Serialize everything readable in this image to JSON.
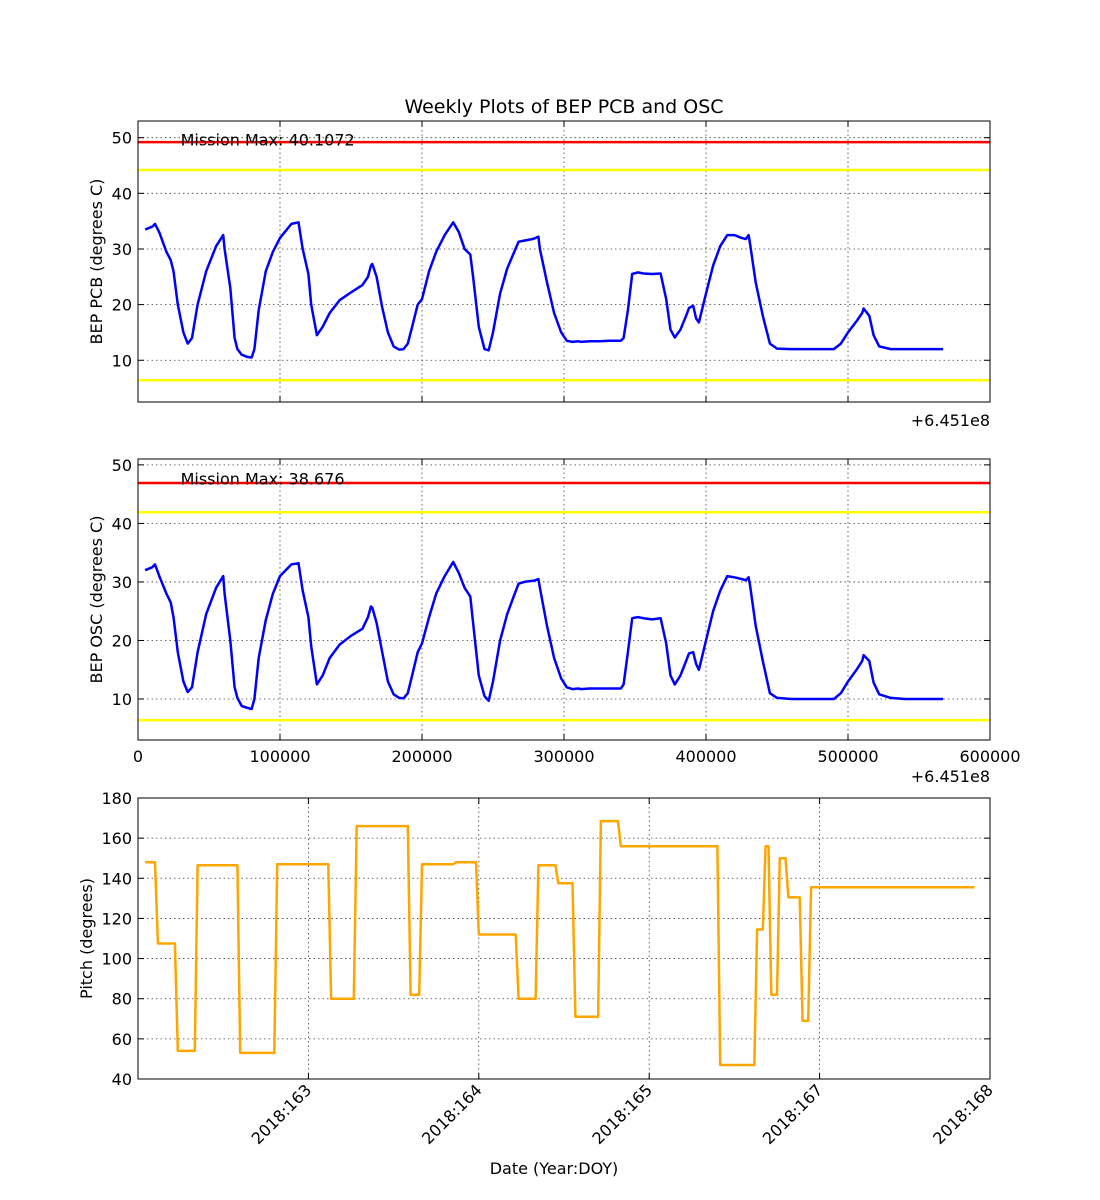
{
  "figure": {
    "title": "Weekly Plots of BEP PCB and OSC"
  },
  "chart_data": [
    {
      "type": "line",
      "id": "pcb",
      "title": "Weekly Plots of BEP PCB and OSC",
      "ylabel": "BEP PCB (degrees C)",
      "xlabel": "",
      "offset_label": "+6.451e8",
      "xlim": [
        0,
        600000
      ],
      "ylim": [
        2.5,
        53
      ],
      "yticks": [
        10,
        20,
        30,
        40,
        50
      ],
      "xticks": [
        0,
        100000,
        200000,
        300000,
        400000,
        500000,
        600000
      ],
      "show_x_tick_labels": false,
      "grid": true,
      "annotation": {
        "text": "Mission Max: 40.1072",
        "x": 30000,
        "y": 49.5
      },
      "limit_lines": [
        {
          "y": 49.2,
          "color": "#ff0000"
        },
        {
          "y": 44.2,
          "color": "#ffff00"
        },
        {
          "y": 6.4,
          "color": "#ffff00"
        }
      ],
      "series": [
        {
          "color": "#0000ff",
          "x": [
            5000,
            10000,
            12000,
            15000,
            20000,
            23000,
            25000,
            28000,
            32000,
            35000,
            38000,
            42000,
            48000,
            55000,
            60000,
            61000,
            65000,
            68000,
            70000,
            73000,
            77000,
            80000,
            82000,
            85000,
            90000,
            95000,
            100000,
            108000,
            113000,
            116000,
            120000,
            122000,
            126000,
            130000,
            135000,
            142000,
            150000,
            158000,
            162000,
            164000,
            165000,
            168000,
            172000,
            176000,
            180000,
            184000,
            187000,
            190000,
            193000,
            197000,
            200000,
            205000,
            210000,
            216000,
            222000,
            226000,
            230000,
            234000,
            236000,
            240000,
            244000,
            247000,
            250000,
            255000,
            260000,
            265000,
            268000,
            272000,
            278000,
            280000,
            282000,
            283000,
            288000,
            293000,
            298000,
            302000,
            306000,
            310000,
            312000,
            318000,
            325000,
            332000,
            340000,
            342000,
            345000,
            348000,
            352000,
            356000,
            362000,
            368000,
            372000,
            375000,
            378000,
            382000,
            386000,
            388000,
            391000,
            393000,
            395000,
            400000,
            405000,
            410000,
            415000,
            420000,
            425000,
            428000,
            430000,
            431000,
            435000,
            440000,
            445000,
            450000,
            460000,
            470000,
            480000,
            486000,
            490000,
            495000,
            500000,
            506000,
            510000,
            511000,
            515000,
            518000,
            522000,
            530000,
            540000,
            550000,
            560000,
            567000
          ],
          "y": [
            33.5,
            34,
            34.5,
            33,
            29.5,
            28,
            26,
            20,
            15,
            13,
            14,
            20,
            26,
            30.5,
            32.5,
            30,
            23,
            14,
            12,
            11,
            10.6,
            10.5,
            12,
            19,
            26,
            29.5,
            32,
            34.5,
            34.8,
            30,
            25.5,
            20,
            14.5,
            16,
            18.5,
            20.8,
            22.2,
            23.5,
            25,
            27,
            27.3,
            25,
            19.5,
            15,
            12.5,
            11.9,
            12,
            13,
            16,
            20,
            21,
            26,
            29.5,
            32.5,
            34.8,
            33,
            30,
            29,
            25,
            16,
            12,
            11.8,
            15,
            22,
            26.5,
            29.5,
            31.3,
            31.5,
            31.8,
            32,
            32.2,
            30,
            24,
            18.5,
            15,
            13.5,
            13.3,
            13.4,
            13.3,
            13.4,
            13.4,
            13.5,
            13.5,
            14,
            19,
            25.5,
            25.8,
            25.6,
            25.5,
            25.6,
            21,
            15.5,
            14.1,
            15.5,
            18,
            19.4,
            19.8,
            17.5,
            16.8,
            22,
            27,
            30.5,
            32.5,
            32.5,
            32,
            31.8,
            32.5,
            31,
            24,
            18,
            13,
            12.1,
            12,
            12,
            12,
            12,
            12,
            13,
            15,
            17,
            18.5,
            19.3,
            18,
            14.5,
            12.5,
            12,
            12,
            12,
            12,
            12
          ]
        }
      ]
    },
    {
      "type": "line",
      "id": "osc",
      "ylabel": "BEP OSC (degrees C)",
      "xlabel": "",
      "offset_label": "+6.451e8",
      "xlim": [
        0,
        600000
      ],
      "ylim": [
        3,
        51
      ],
      "yticks": [
        10,
        20,
        30,
        40,
        50
      ],
      "xticks": [
        0,
        100000,
        200000,
        300000,
        400000,
        500000,
        600000
      ],
      "x_tick_labels": [
        "0",
        "100000",
        "200000",
        "300000",
        "400000",
        "500000",
        "600000"
      ],
      "show_x_tick_labels": true,
      "grid": true,
      "annotation": {
        "text": "Mission Max: 38.676",
        "x": 30000,
        "y": 47.5
      },
      "limit_lines": [
        {
          "y": 46.9,
          "color": "#ff0000"
        },
        {
          "y": 41.9,
          "color": "#ffff00"
        },
        {
          "y": 6.4,
          "color": "#ffff00"
        }
      ],
      "series": [
        {
          "color": "#0000ff",
          "x": [
            5000,
            10000,
            12000,
            15000,
            20000,
            23000,
            25000,
            28000,
            32000,
            35000,
            38000,
            42000,
            48000,
            55000,
            60000,
            61000,
            65000,
            68000,
            70000,
            73000,
            77000,
            80000,
            82000,
            85000,
            90000,
            95000,
            100000,
            108000,
            113000,
            116000,
            120000,
            122000,
            126000,
            130000,
            135000,
            142000,
            150000,
            158000,
            162000,
            164000,
            165000,
            168000,
            172000,
            176000,
            180000,
            184000,
            187000,
            190000,
            193000,
            197000,
            200000,
            205000,
            210000,
            216000,
            222000,
            226000,
            230000,
            234000,
            236000,
            240000,
            244000,
            247000,
            250000,
            255000,
            260000,
            265000,
            268000,
            272000,
            278000,
            280000,
            282000,
            283000,
            288000,
            293000,
            298000,
            302000,
            306000,
            310000,
            312000,
            318000,
            325000,
            332000,
            340000,
            342000,
            345000,
            348000,
            352000,
            356000,
            362000,
            368000,
            372000,
            375000,
            378000,
            382000,
            386000,
            388000,
            391000,
            393000,
            395000,
            400000,
            405000,
            410000,
            415000,
            420000,
            425000,
            428000,
            430000,
            431000,
            435000,
            440000,
            445000,
            450000,
            460000,
            470000,
            480000,
            486000,
            490000,
            495000,
            500000,
            506000,
            510000,
            511000,
            515000,
            518000,
            522000,
            530000,
            540000,
            550000,
            560000,
            567000
          ],
          "y": [
            32,
            32.5,
            33,
            31,
            28,
            26.5,
            24,
            18,
            13,
            11.2,
            12,
            18,
            24.5,
            29,
            31,
            28,
            20,
            12,
            10.2,
            8.8,
            8.5,
            8.3,
            10,
            17,
            23.5,
            28,
            31,
            33,
            33.2,
            28.5,
            24,
            19,
            12.5,
            14,
            17,
            19.3,
            20.8,
            22,
            24,
            25.8,
            25.6,
            23,
            18,
            13,
            10.8,
            10.2,
            10.1,
            11,
            14,
            18,
            19.5,
            24,
            28,
            31,
            33.4,
            31.5,
            29,
            27.5,
            23,
            14,
            10.5,
            9.7,
            13,
            20,
            24.5,
            27.8,
            29.7,
            30,
            30.2,
            30.3,
            30.5,
            29,
            22.5,
            17,
            13.5,
            12,
            11.7,
            11.8,
            11.7,
            11.8,
            11.8,
            11.8,
            11.8,
            12.5,
            18,
            23.8,
            24,
            23.8,
            23.6,
            23.8,
            19.5,
            14,
            12.5,
            14,
            16.5,
            17.8,
            18,
            16,
            15,
            20,
            25,
            28.5,
            31,
            30.8,
            30.5,
            30.3,
            30.8,
            29.5,
            22.5,
            16.5,
            11,
            10.2,
            10,
            10,
            10,
            10,
            10,
            11,
            13,
            15,
            16.5,
            17.5,
            16.5,
            12.8,
            10.8,
            10.2,
            10,
            10,
            10,
            10
          ]
        }
      ]
    },
    {
      "type": "line",
      "id": "pitch",
      "ylabel": "Pitch (degrees)",
      "xlabel": "Date (Year:DOY)",
      "xlim": [
        0,
        600000
      ],
      "ylim": [
        40,
        180
      ],
      "yticks": [
        40,
        60,
        80,
        100,
        120,
        140,
        160,
        180
      ],
      "xticks": [
        120000,
        240000,
        360000,
        480000,
        600000
      ],
      "x_tick_labels": [
        "2018:163",
        "2018:164",
        "2018:165",
        "2018:167",
        "2018:168"
      ],
      "show_x_tick_labels": true,
      "grid": true,
      "series": [
        {
          "color": "#ffa500",
          "x": [
            5000,
            12000,
            14000,
            26000,
            28000,
            40000,
            42000,
            70000,
            72000,
            96000,
            98000,
            134000,
            136000,
            152000,
            154000,
            190000,
            192000,
            198000,
            200000,
            222000,
            224000,
            238000,
            240000,
            266000,
            268000,
            280000,
            282000,
            294000,
            296000,
            306000,
            308000,
            324000,
            326000,
            338000,
            340000,
            408000,
            410000,
            434000,
            436000,
            440000,
            442000,
            444000,
            446000,
            450000,
            452000,
            456000,
            458000,
            466000,
            468000,
            472000,
            474000,
            500000,
            502000,
            512000,
            514000,
            582000,
            584000,
            589000
          ],
          "y": [
            148,
            148,
            107.5,
            107.5,
            54,
            54,
            146.5,
            146.5,
            53,
            53,
            147,
            147,
            80,
            80,
            166,
            166,
            82,
            82,
            147,
            147,
            148,
            148,
            112,
            112,
            80,
            80,
            146.5,
            146.5,
            137.5,
            137.5,
            71,
            71,
            168.5,
            168.5,
            156,
            156,
            47,
            47,
            114.5,
            114.5,
            156,
            156,
            82,
            82,
            150,
            150,
            130.5,
            130.5,
            69,
            69,
            135.5,
            135.5,
            135.5,
            135.5,
            135.5,
            135.5,
            135.5,
            135.5
          ]
        }
      ]
    }
  ]
}
